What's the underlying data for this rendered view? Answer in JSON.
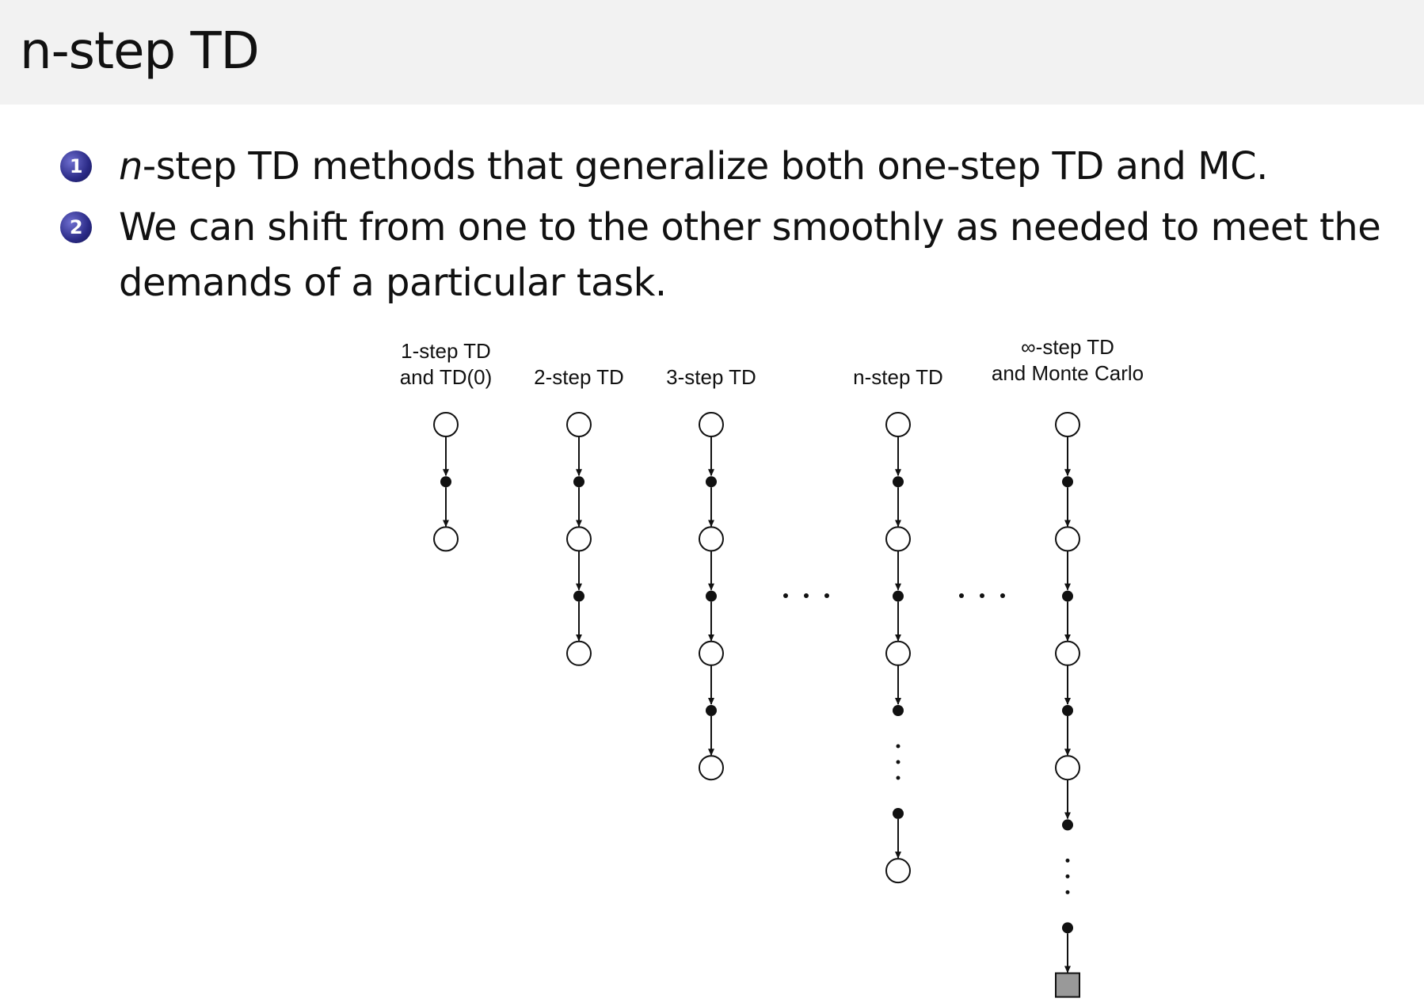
{
  "slide": {
    "title": "n-step TD",
    "bullets": [
      {
        "number": "1",
        "italic_prefix": "n",
        "text": "-step TD methods that generalize both one-step TD and MC."
      },
      {
        "number": "2",
        "italic_prefix": "",
        "text": "We can shift from one to the other smoothly as needed to meet the demands of a particular task."
      }
    ],
    "accent_color": "#2a2a86",
    "header_background": "#f2f2f2"
  },
  "diagram": {
    "columns": [
      {
        "label_lines": [
          "1-step TD",
          "and TD(0)"
        ],
        "nodes": [
          "state",
          "action",
          "state"
        ]
      },
      {
        "label_lines": [
          "2-step TD"
        ],
        "nodes": [
          "state",
          "action",
          "state",
          "action",
          "state"
        ]
      },
      {
        "label_lines": [
          "3-step TD"
        ],
        "nodes": [
          "state",
          "action",
          "state",
          "action",
          "state",
          "action",
          "state"
        ]
      },
      {
        "label_lines": [
          "n-step TD"
        ],
        "nodes": [
          "state",
          "action",
          "state",
          "action",
          "state",
          "action",
          "vdots",
          "action",
          "state"
        ]
      },
      {
        "label_lines": [
          "∞-step TD",
          "and Monte Carlo"
        ],
        "nodes": [
          "state",
          "action",
          "state",
          "action",
          "state",
          "action",
          "state",
          "action",
          "vdots",
          "action",
          "terminal"
        ]
      }
    ],
    "ellipsis": "horizontal-dots",
    "terminal_color": "#999999"
  }
}
